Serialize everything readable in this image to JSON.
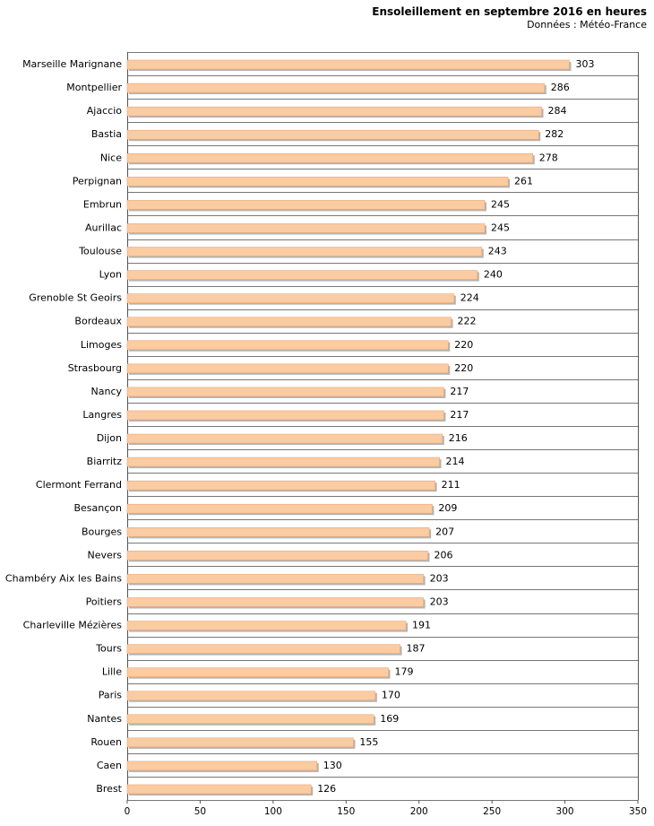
{
  "chart_data": {
    "type": "bar",
    "orientation": "horizontal",
    "title": "Ensoleillement en septembre 2016 en heures",
    "subtitle": "Données : Météo-France",
    "xlabel": "",
    "ylabel": "",
    "xlim": [
      0,
      350
    ],
    "xticks": [
      "0",
      "50",
      "100",
      "150",
      "200",
      "250",
      "300",
      "350"
    ],
    "grid": "horizontal lines between categories",
    "categories": [
      "Marseille Marignane",
      "Montpellier",
      "Ajaccio",
      "Bastia",
      "Nice",
      "Perpignan",
      "Embrun",
      "Aurillac",
      "Toulouse",
      "Lyon",
      "Grenoble St Geoirs",
      "Bordeaux",
      "Limoges",
      "Strasbourg",
      "Nancy",
      "Langres",
      "Dijon",
      "Biarritz",
      "Clermont Ferrand",
      "Besançon",
      "Bourges",
      "Nevers",
      "Chambéry Aix les Bains",
      "Poitiers",
      "Charleville Mézières",
      "Tours",
      "Lille",
      "Paris",
      "Nantes",
      "Rouen",
      "Caen",
      "Brest"
    ],
    "values": [
      303,
      286,
      284,
      282,
      278,
      261,
      245,
      245,
      243,
      240,
      224,
      222,
      220,
      220,
      217,
      217,
      216,
      214,
      211,
      209,
      207,
      206,
      203,
      203,
      191,
      187,
      179,
      170,
      169,
      155,
      130,
      126
    ],
    "colors": {
      "bar": "#fbcba2",
      "bar_edge": "#e9a877",
      "shadow": "#b3b3b3",
      "grid": "#777777"
    }
  }
}
